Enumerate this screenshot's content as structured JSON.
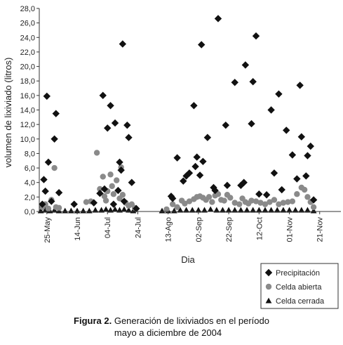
{
  "chart_data": {
    "type": "scatter",
    "ylabel": "volumen de lixiviado (litros)",
    "xlabel": "Dia",
    "ylim": [
      0,
      28
    ],
    "yticks": [
      "0,0",
      "2,0",
      "4,0",
      "6,0",
      "8,0",
      "10,0",
      "12,0",
      "14,0",
      "16,0",
      "18,0",
      "20,0",
      "22,0",
      "24,0",
      "26,0",
      "28,0"
    ],
    "xlim": [
      "2004-05-20",
      "2004-12-05"
    ],
    "xticks": [
      {
        "date": "2004-05-25",
        "label": "25-May"
      },
      {
        "date": "2004-06-14",
        "label": "14-Jun"
      },
      {
        "date": "2004-07-04",
        "label": "04-Jul"
      },
      {
        "date": "2004-07-24",
        "label": "24-Jul"
      },
      {
        "date": "2004-08-13",
        "label": "13-Ago"
      },
      {
        "date": "2004-09-02",
        "label": "02-Sep"
      },
      {
        "date": "2004-09-22",
        "label": "22-Sep"
      },
      {
        "date": "2004-10-12",
        "label": "12-Oct"
      },
      {
        "date": "2004-11-01",
        "label": "01-Nov"
      },
      {
        "date": "2004-11-21",
        "label": "21-Nov"
      }
    ],
    "grid": false,
    "legend": "bottom-right",
    "series": [
      {
        "name": "Precipitación",
        "marker": "diamond",
        "color": "#111111",
        "points": [
          [
            "2004-05-22",
            1.0
          ],
          [
            "2004-05-23",
            4.4
          ],
          [
            "2004-05-24",
            2.8
          ],
          [
            "2004-05-25",
            15.9
          ],
          [
            "2004-05-26",
            6.8
          ],
          [
            "2004-05-28",
            1.4
          ],
          [
            "2004-05-30",
            10.0
          ],
          [
            "2004-05-31",
            13.5
          ],
          [
            "2004-06-02",
            2.6
          ],
          [
            "2004-06-12",
            1.0
          ],
          [
            "2004-06-25",
            1.2
          ],
          [
            "2004-06-29",
            2.5
          ],
          [
            "2004-07-01",
            16.0
          ],
          [
            "2004-07-02",
            3.1
          ],
          [
            "2004-07-04",
            11.5
          ],
          [
            "2004-07-06",
            14.6
          ],
          [
            "2004-07-08",
            1.0
          ],
          [
            "2004-07-09",
            12.2
          ],
          [
            "2004-07-11",
            2.9
          ],
          [
            "2004-07-12",
            6.8
          ],
          [
            "2004-07-13",
            5.7
          ],
          [
            "2004-07-14",
            23.1
          ],
          [
            "2004-07-15",
            1.4
          ],
          [
            "2004-07-17",
            11.9
          ],
          [
            "2004-07-18",
            10.2
          ],
          [
            "2004-07-20",
            4.0
          ],
          [
            "2004-07-23",
            0.4
          ],
          [
            "2004-08-15",
            2.1
          ],
          [
            "2004-08-16",
            1.8
          ],
          [
            "2004-08-19",
            7.4
          ],
          [
            "2004-08-23",
            4.2
          ],
          [
            "2004-08-25",
            4.9
          ],
          [
            "2004-08-27",
            5.3
          ],
          [
            "2004-08-30",
            14.6
          ],
          [
            "2004-08-31",
            6.2
          ],
          [
            "2004-09-01",
            7.5
          ],
          [
            "2004-09-03",
            5.0
          ],
          [
            "2004-09-04",
            23.0
          ],
          [
            "2004-09-05",
            6.9
          ],
          [
            "2004-09-08",
            10.2
          ],
          [
            "2004-09-12",
            3.3
          ],
          [
            "2004-09-13",
            2.9
          ],
          [
            "2004-09-15",
            26.6
          ],
          [
            "2004-09-20",
            11.9
          ],
          [
            "2004-09-21",
            3.6
          ],
          [
            "2004-09-26",
            17.8
          ],
          [
            "2004-09-30",
            3.6
          ],
          [
            "2004-10-02",
            4.0
          ],
          [
            "2004-10-03",
            20.2
          ],
          [
            "2004-10-07",
            12.1
          ],
          [
            "2004-10-08",
            17.9
          ],
          [
            "2004-10-10",
            24.2
          ],
          [
            "2004-10-12",
            2.4
          ],
          [
            "2004-10-17",
            2.3
          ],
          [
            "2004-10-20",
            14.0
          ],
          [
            "2004-10-22",
            5.3
          ],
          [
            "2004-10-25",
            16.2
          ],
          [
            "2004-10-27",
            3.0
          ],
          [
            "2004-10-30",
            11.2
          ],
          [
            "2004-11-03",
            7.8
          ],
          [
            "2004-11-06",
            4.5
          ],
          [
            "2004-11-08",
            17.4
          ],
          [
            "2004-11-09",
            10.3
          ],
          [
            "2004-11-12",
            4.9
          ],
          [
            "2004-11-13",
            7.7
          ],
          [
            "2004-11-15",
            9.0
          ],
          [
            "2004-11-17",
            1.6
          ]
        ]
      },
      {
        "name": "Celda abierta",
        "marker": "circle",
        "color": "#8a8a8a",
        "points": [
          [
            "2004-05-22",
            0.6
          ],
          [
            "2004-05-24",
            1.0
          ],
          [
            "2004-05-26",
            0.4
          ],
          [
            "2004-05-28",
            1.6
          ],
          [
            "2004-05-30",
            6.0
          ],
          [
            "2004-05-31",
            0.6
          ],
          [
            "2004-06-02",
            0.5
          ],
          [
            "2004-06-20",
            1.3
          ],
          [
            "2004-06-23",
            1.4
          ],
          [
            "2004-06-27",
            8.1
          ],
          [
            "2004-06-29",
            3.1
          ],
          [
            "2004-07-01",
            4.8
          ],
          [
            "2004-07-02",
            2.1
          ],
          [
            "2004-07-03",
            1.5
          ],
          [
            "2004-07-04",
            2.8
          ],
          [
            "2004-07-06",
            5.1
          ],
          [
            "2004-07-07",
            3.5
          ],
          [
            "2004-07-08",
            2.4
          ],
          [
            "2004-07-10",
            4.3
          ],
          [
            "2004-07-12",
            1.8
          ],
          [
            "2004-07-13",
            6.1
          ],
          [
            "2004-07-14",
            2.3
          ],
          [
            "2004-07-16",
            1.2
          ],
          [
            "2004-07-18",
            0.8
          ],
          [
            "2004-07-20",
            1.0
          ],
          [
            "2004-07-22",
            0.5
          ],
          [
            "2004-08-12",
            0.3
          ],
          [
            "2004-08-16",
            1.0
          ],
          [
            "2004-08-19",
            0.6
          ],
          [
            "2004-08-22",
            1.5
          ],
          [
            "2004-08-24",
            1.1
          ],
          [
            "2004-08-27",
            1.4
          ],
          [
            "2004-08-30",
            1.7
          ],
          [
            "2004-09-01",
            2.0
          ],
          [
            "2004-09-03",
            2.1
          ],
          [
            "2004-09-05",
            1.9
          ],
          [
            "2004-09-07",
            1.6
          ],
          [
            "2004-09-09",
            2.0
          ],
          [
            "2004-09-11",
            1.3
          ],
          [
            "2004-09-13",
            2.2
          ],
          [
            "2004-09-15",
            2.4
          ],
          [
            "2004-09-17",
            1.6
          ],
          [
            "2004-09-19",
            1.5
          ],
          [
            "2004-09-21",
            2.3
          ],
          [
            "2004-09-23",
            1.9
          ],
          [
            "2004-09-26",
            1.2
          ],
          [
            "2004-09-29",
            1.0
          ],
          [
            "2004-10-01",
            1.8
          ],
          [
            "2004-10-03",
            1.3
          ],
          [
            "2004-10-05",
            1.1
          ],
          [
            "2004-10-07",
            1.5
          ],
          [
            "2004-10-10",
            1.4
          ],
          [
            "2004-10-13",
            1.2
          ],
          [
            "2004-10-16",
            1.0
          ],
          [
            "2004-10-19",
            1.3
          ],
          [
            "2004-10-22",
            1.6
          ],
          [
            "2004-10-25",
            1.0
          ],
          [
            "2004-10-28",
            1.2
          ],
          [
            "2004-10-31",
            1.3
          ],
          [
            "2004-11-03",
            1.4
          ],
          [
            "2004-11-06",
            2.4
          ],
          [
            "2004-11-09",
            3.3
          ],
          [
            "2004-11-11",
            3.0
          ],
          [
            "2004-11-13",
            2.0
          ],
          [
            "2004-11-15",
            1.3
          ],
          [
            "2004-11-17",
            0.6
          ]
        ]
      },
      {
        "name": "Celda cerrada",
        "marker": "triangle",
        "color": "#111111",
        "points": [
          [
            "2004-05-21",
            0.1
          ],
          [
            "2004-05-24",
            0.2
          ],
          [
            "2004-05-27",
            0.1
          ],
          [
            "2004-05-30",
            0.2
          ],
          [
            "2004-06-02",
            0.1
          ],
          [
            "2004-06-06",
            0.1
          ],
          [
            "2004-06-10",
            0.1
          ],
          [
            "2004-06-14",
            0.1
          ],
          [
            "2004-06-18",
            0.1
          ],
          [
            "2004-06-22",
            0.1
          ],
          [
            "2004-06-26",
            0.2
          ],
          [
            "2004-06-30",
            0.2
          ],
          [
            "2004-07-03",
            0.3
          ],
          [
            "2004-07-06",
            0.2
          ],
          [
            "2004-07-09",
            0.3
          ],
          [
            "2004-07-12",
            0.2
          ],
          [
            "2004-07-15",
            0.3
          ],
          [
            "2004-07-18",
            0.2
          ],
          [
            "2004-07-21",
            0.1
          ],
          [
            "2004-08-09",
            0.1
          ],
          [
            "2004-08-13",
            0.1
          ],
          [
            "2004-08-17",
            0.1
          ],
          [
            "2004-08-21",
            0.2
          ],
          [
            "2004-08-25",
            0.2
          ],
          [
            "2004-08-29",
            0.2
          ],
          [
            "2004-09-02",
            0.2
          ],
          [
            "2004-09-06",
            0.2
          ],
          [
            "2004-09-10",
            0.3
          ],
          [
            "2004-09-14",
            0.2
          ],
          [
            "2004-09-18",
            0.2
          ],
          [
            "2004-09-22",
            0.2
          ],
          [
            "2004-09-26",
            0.2
          ],
          [
            "2004-09-30",
            0.2
          ],
          [
            "2004-10-04",
            0.2
          ],
          [
            "2004-10-08",
            0.2
          ],
          [
            "2004-10-12",
            0.2
          ],
          [
            "2004-10-16",
            0.2
          ],
          [
            "2004-10-20",
            0.2
          ],
          [
            "2004-10-24",
            0.2
          ],
          [
            "2004-10-28",
            0.2
          ],
          [
            "2004-11-01",
            0.2
          ],
          [
            "2004-11-05",
            0.2
          ],
          [
            "2004-11-09",
            0.2
          ],
          [
            "2004-11-13",
            0.2
          ],
          [
            "2004-11-17",
            0.1
          ]
        ]
      }
    ]
  },
  "caption": {
    "label": "Figura 2.",
    "text": "Generación de lixiviados en el período",
    "line2": "mayo a diciembre de 2004"
  }
}
